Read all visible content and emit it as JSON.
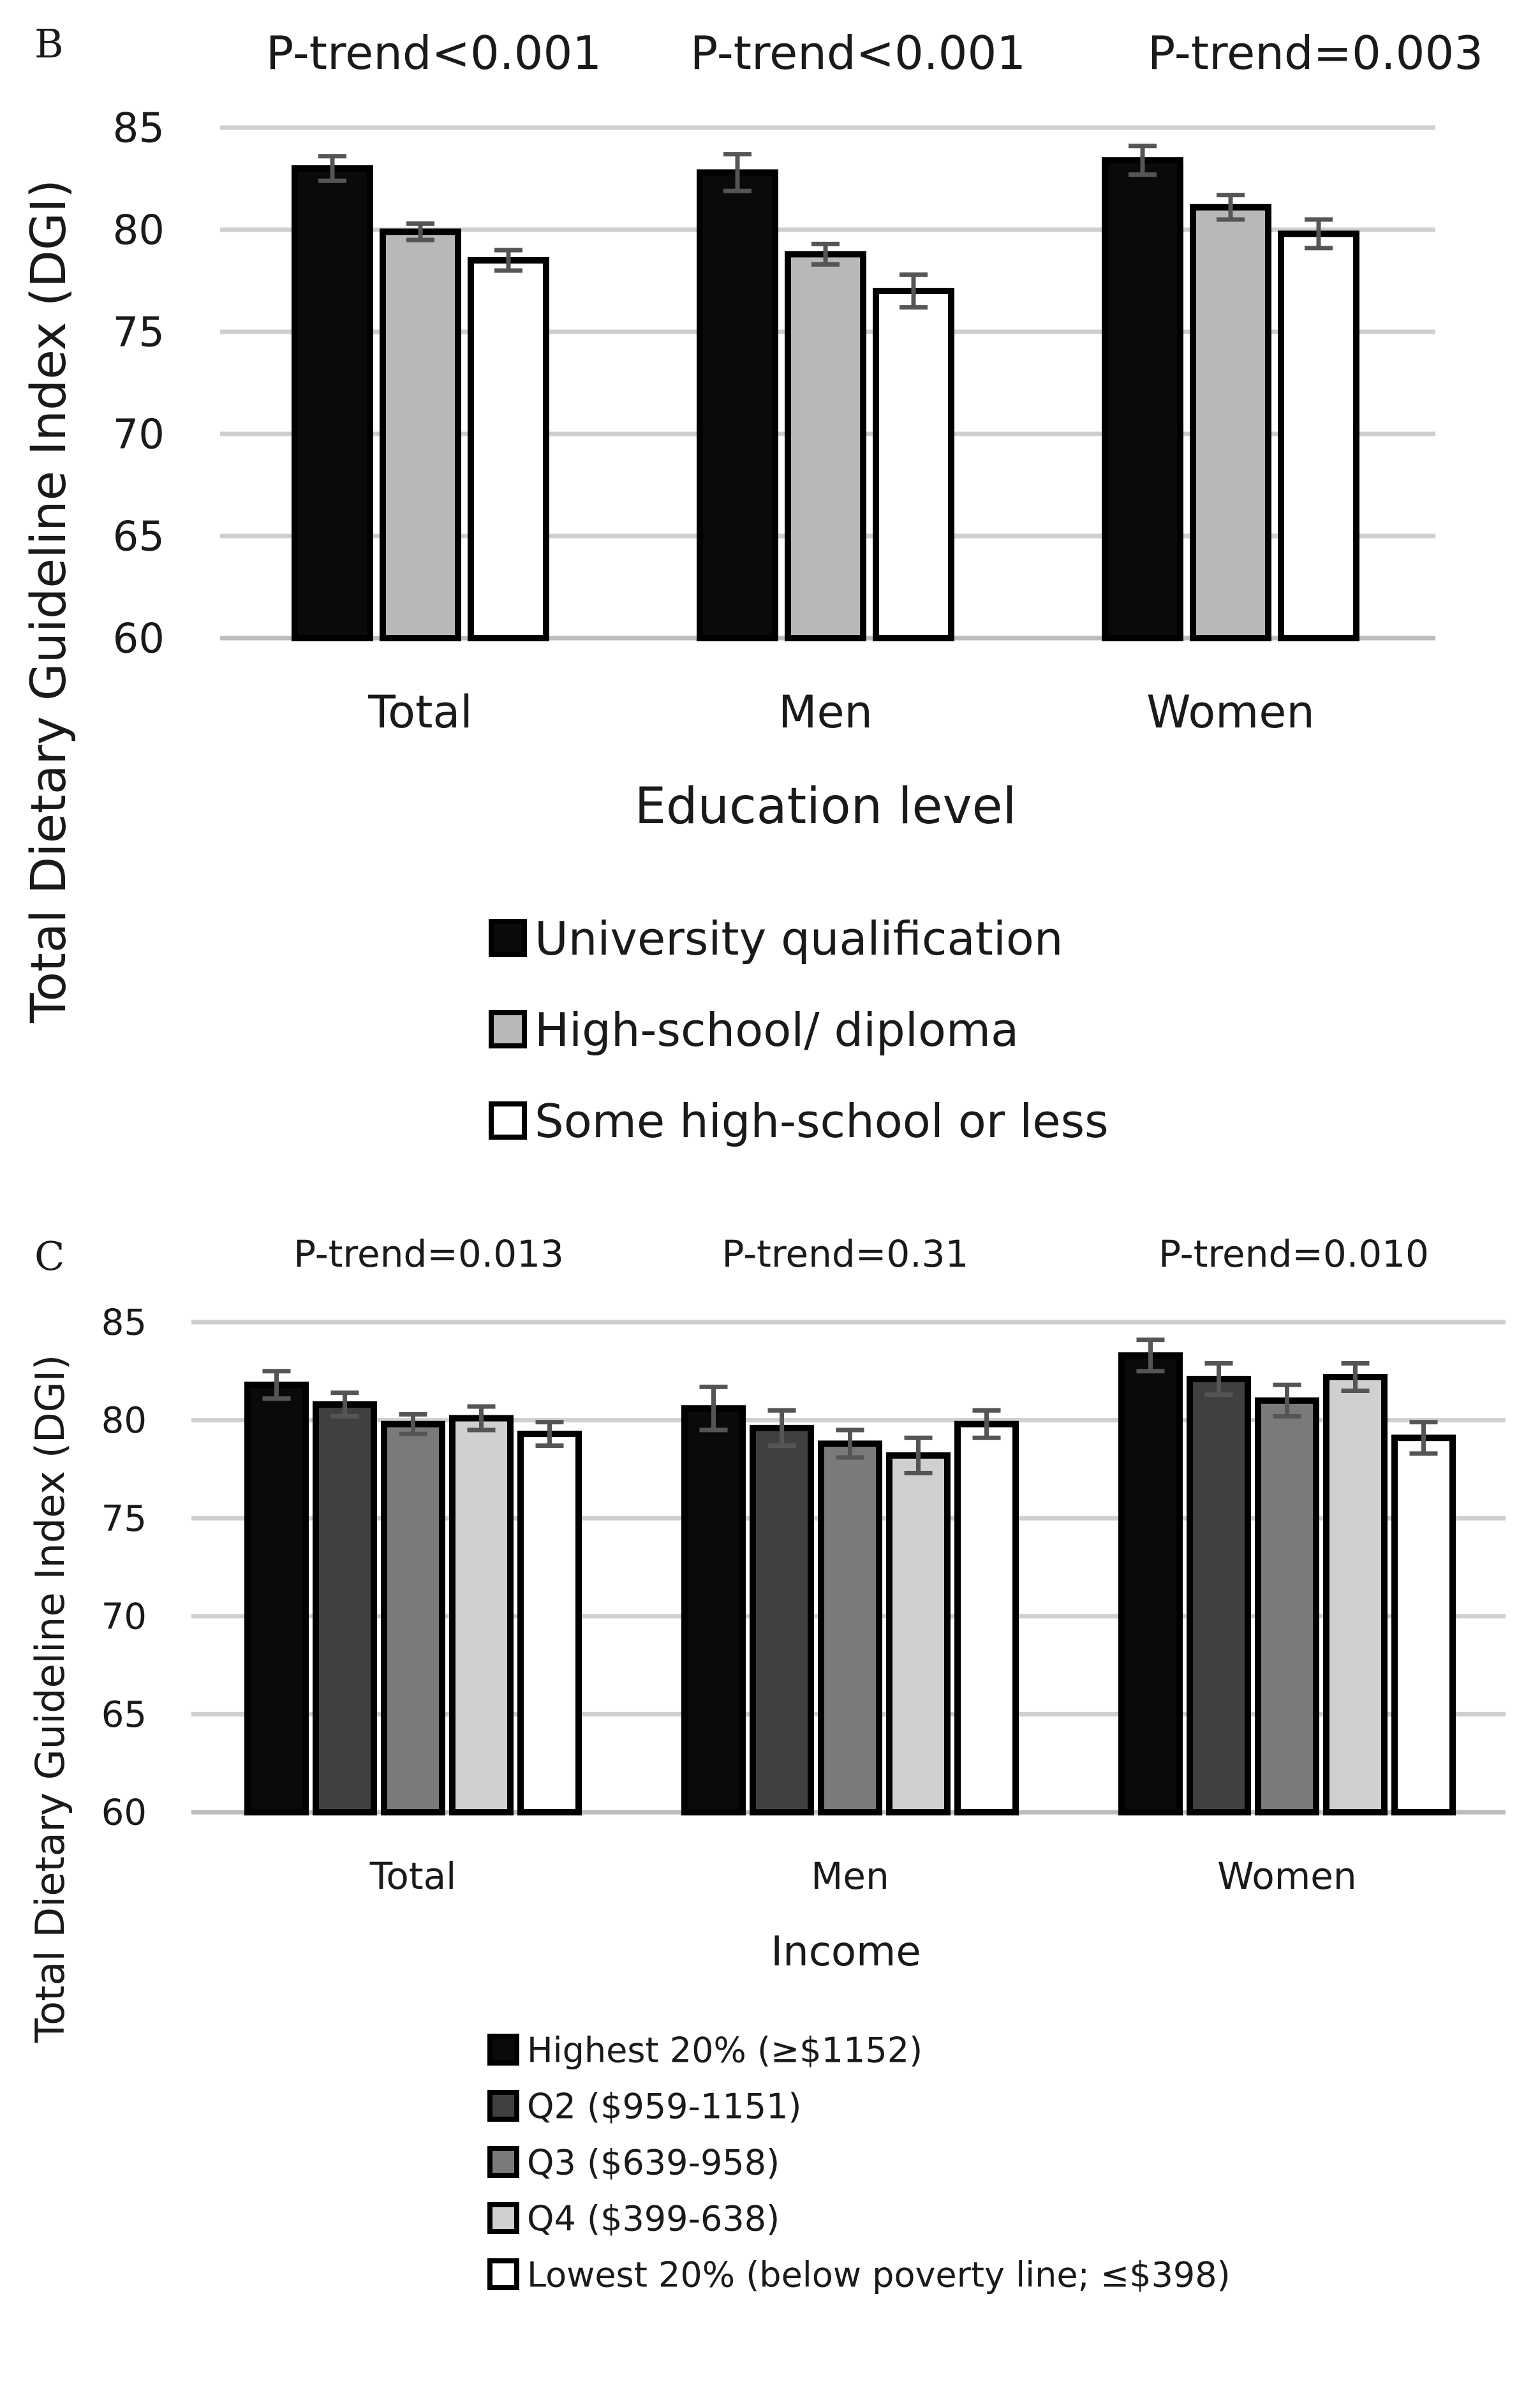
{
  "chart_data": [
    {
      "panel": "B",
      "type": "bar",
      "xlabel": "Education level",
      "ylabel": "Total Dietary Guideline Index (DGI)",
      "ylim": [
        60,
        85
      ],
      "yticks": [
        "85",
        "80",
        "75",
        "70",
        "65",
        "60"
      ],
      "categories": [
        "Total",
        "Men",
        "Women"
      ],
      "annotations": [
        "P-trend<0.001",
        "P-trend<0.001",
        "P-trend=0.003"
      ],
      "legend_position": "bottom",
      "series": [
        {
          "name": "University qualification",
          "color": "#0a0a0a",
          "values": [
            83.0,
            82.8,
            83.4
          ],
          "err": [
            0.6,
            0.9,
            0.7
          ]
        },
        {
          "name": "High-school/ diploma",
          "color": "#b8b8b8",
          "values": [
            79.9,
            78.8,
            81.1
          ],
          "err": [
            0.4,
            0.5,
            0.6
          ]
        },
        {
          "name": "Some high-school or less",
          "color": "#ffffff",
          "values": [
            78.5,
            77.0,
            79.8
          ],
          "err": [
            0.5,
            0.8,
            0.7
          ]
        }
      ]
    },
    {
      "panel": "C",
      "type": "bar",
      "xlabel": "Income",
      "ylabel": "Total Dietary Guideline Index (DGI)",
      "ylim": [
        60,
        85
      ],
      "yticks": [
        "85",
        "80",
        "75",
        "70",
        "65",
        "60"
      ],
      "categories": [
        "Total",
        "Men",
        "Women"
      ],
      "annotations": [
        "P-trend=0.013",
        "P-trend=0.31",
        "P-trend=0.010"
      ],
      "legend_position": "bottom",
      "series": [
        {
          "name": "Highest 20% (≥$1152)",
          "color": "#0a0a0a",
          "values": [
            81.8,
            80.6,
            83.3
          ],
          "err": [
            0.7,
            1.1,
            0.8
          ]
        },
        {
          "name": "Q2 ($959-1151)",
          "color": "#404040",
          "values": [
            80.8,
            79.6,
            82.1
          ],
          "err": [
            0.6,
            0.9,
            0.8
          ]
        },
        {
          "name": "Q3 ($639-958)",
          "color": "#7a7a7a",
          "values": [
            79.8,
            78.8,
            81.0
          ],
          "err": [
            0.5,
            0.7,
            0.8
          ]
        },
        {
          "name": "Q4 ($399-638)",
          "color": "#d0d0d0",
          "values": [
            80.1,
            78.2,
            82.2
          ],
          "err": [
            0.6,
            0.9,
            0.7
          ]
        },
        {
          "name": "Lowest 20% (below poverty line; ≤$398)",
          "color": "#ffffff",
          "values": [
            79.3,
            79.8,
            79.1
          ],
          "err": [
            0.6,
            0.7,
            0.8
          ]
        }
      ]
    }
  ],
  "panel_labels": [
    "B",
    "C"
  ]
}
